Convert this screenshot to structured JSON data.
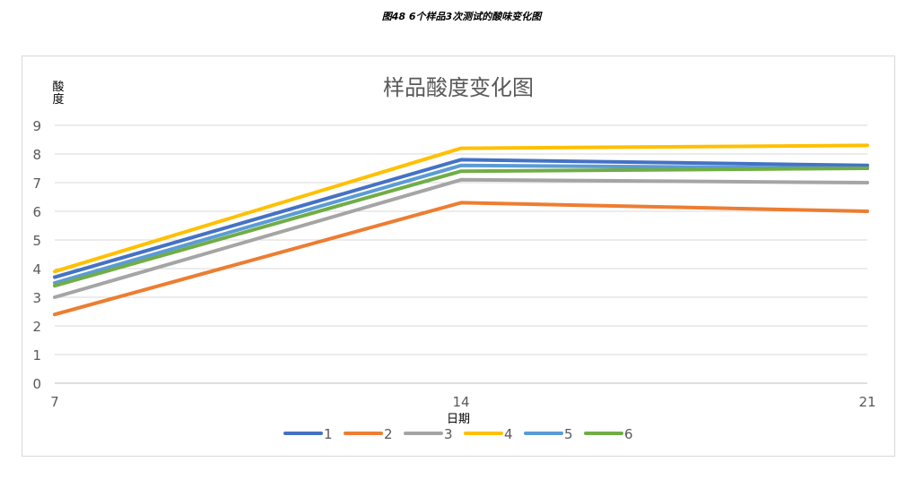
{
  "caption": "图48 6个样品3次测试的酸味变化图",
  "chart_data": {
    "type": "line",
    "title": "样品酸度变化图",
    "xlabel": "日期",
    "ylabel": "酸度",
    "x": [
      7,
      14,
      21
    ],
    "ylim": [
      0,
      9
    ],
    "yticks": [
      0,
      1,
      2,
      3,
      4,
      5,
      6,
      7,
      8,
      9
    ],
    "grid": true,
    "legend_position": "bottom",
    "series": [
      {
        "name": "1",
        "color": "#4472C4",
        "values": [
          3.7,
          7.8,
          7.6
        ]
      },
      {
        "name": "2",
        "color": "#ED7D31",
        "values": [
          2.4,
          6.3,
          6.0
        ]
      },
      {
        "name": "3",
        "color": "#A5A5A5",
        "values": [
          3.0,
          7.1,
          7.0
        ]
      },
      {
        "name": "4",
        "color": "#FFC000",
        "values": [
          3.9,
          8.2,
          8.3
        ]
      },
      {
        "name": "5",
        "color": "#5B9BD5",
        "values": [
          3.5,
          7.6,
          7.5
        ]
      },
      {
        "name": "6",
        "color": "#70AD47",
        "values": [
          3.4,
          7.4,
          7.5
        ]
      }
    ]
  }
}
